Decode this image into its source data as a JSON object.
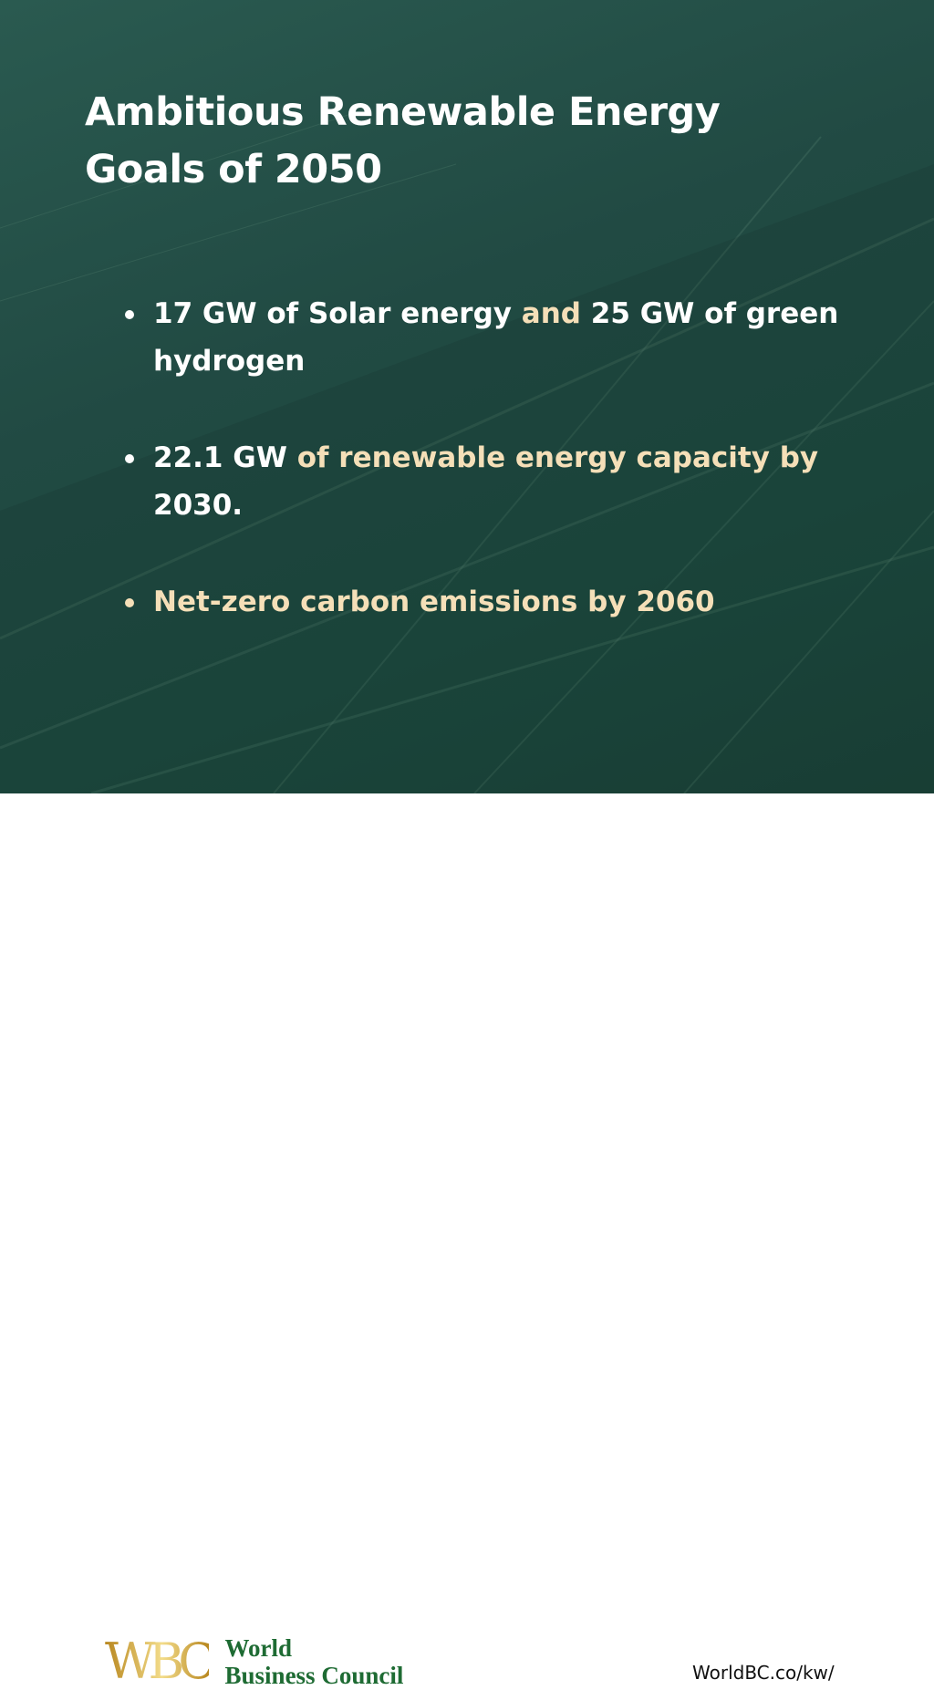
{
  "title": {
    "line1": "Ambitious Renewable Energy",
    "line2": "Goals of 2050"
  },
  "bullets": [
    {
      "segments": [
        {
          "text": "17 GW of Solar energy ",
          "highlight": false
        },
        {
          "text": "and",
          "highlight": true
        },
        {
          "text": " 25 GW of green hydrogen",
          "highlight": false
        }
      ]
    },
    {
      "segments": [
        {
          "text": "22.1 GW",
          "highlight": false
        },
        {
          "text": " of renewable energy capacity by",
          "highlight": true
        },
        {
          "text": " 2030.",
          "highlight": false
        }
      ]
    },
    {
      "segments": [
        {
          "text": "Net-zero carbon emissions by 2060",
          "highlight": true
        }
      ]
    }
  ],
  "footer": {
    "logo_mark": "WBC",
    "logo_line1": "World",
    "logo_line2": "Business Council",
    "url": "WorldBC.co/kw/"
  },
  "colors": {
    "background": "#234b45",
    "highlight": "#f5dfb8",
    "logo_green": "#1e6b33",
    "logo_gold": "#c9a227"
  }
}
